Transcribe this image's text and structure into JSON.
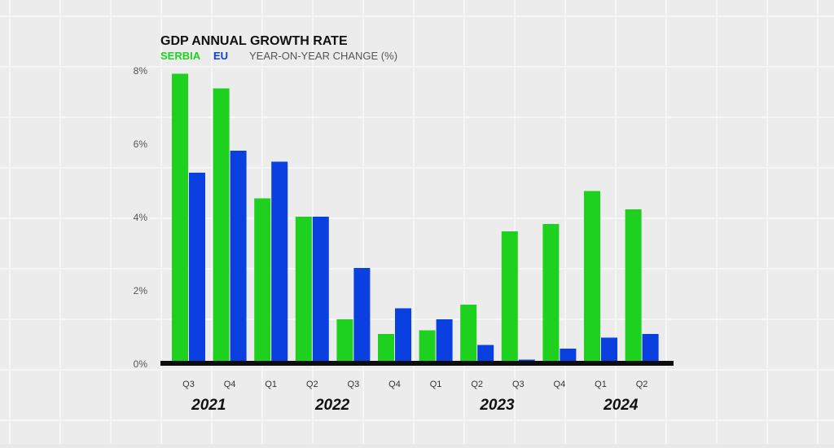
{
  "chart_data": {
    "type": "bar",
    "title": "GDP ANNUAL GROWTH RATE",
    "subtitle": "YEAR-ON-YEAR CHANGE (%)",
    "categories": [
      "Q3",
      "Q4",
      "Q1",
      "Q2",
      "Q3",
      "Q4",
      "Q1",
      "Q2",
      "Q3",
      "Q4",
      "Q1",
      "Q2"
    ],
    "years": [
      {
        "label": "2021",
        "from": 0,
        "to": 1
      },
      {
        "label": "2022",
        "from": 2,
        "to": 5
      },
      {
        "label": "2023",
        "from": 6,
        "to": 9
      },
      {
        "label": "2024",
        "from": 10,
        "to": 11
      }
    ],
    "series": [
      {
        "name": "SERBIA",
        "color": "#1fd11f",
        "values": [
          7.9,
          7.5,
          4.5,
          4.0,
          1.2,
          0.8,
          0.9,
          1.6,
          3.6,
          3.8,
          4.7,
          4.2
        ]
      },
      {
        "name": "EU",
        "color": "#0a3fe0",
        "values": [
          5.2,
          5.8,
          5.5,
          4.0,
          2.6,
          1.5,
          1.2,
          0.5,
          0.1,
          0.4,
          0.7,
          0.8
        ]
      }
    ],
    "ylim": [
      0,
      8
    ],
    "yticks": [
      0,
      2,
      4,
      6,
      8
    ],
    "ytick_labels": [
      "0%",
      "2%",
      "4%",
      "6%",
      "8%"
    ],
    "legend_position": "top-left",
    "grid": true,
    "xlabel": "",
    "ylabel": ""
  }
}
